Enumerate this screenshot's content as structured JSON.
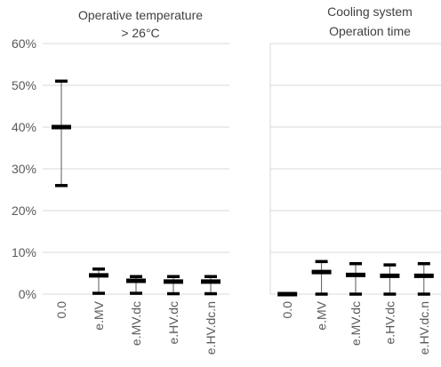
{
  "chart_data": [
    {
      "type": "errorbar",
      "title": [
        "Operative temperature",
        "> 26°C"
      ],
      "ylim": [
        0,
        60
      ],
      "ytick_format": "percent",
      "yticks": [
        0,
        10,
        20,
        30,
        40,
        50,
        60
      ],
      "grid": true,
      "categories": [
        "0.0",
        "e.MV",
        "e.MV.dc",
        "e.HV.dc",
        "e.HV.dc.n"
      ],
      "mid": [
        40,
        4.5,
        3.2,
        3.0,
        3.0
      ],
      "high": [
        51,
        6,
        4.2,
        4.2,
        4.2
      ],
      "low": [
        26,
        0.2,
        0.2,
        0.1,
        0.1
      ]
    },
    {
      "type": "errorbar",
      "title": [
        "Cooling system",
        "Operation time"
      ],
      "ylim": [
        0,
        60
      ],
      "grid": true,
      "categories": [
        "0.0",
        "e.MV",
        "e.MV.dc",
        "e.HV.dc",
        "e.HV.dc.n"
      ],
      "mid": [
        0,
        5.3,
        4.6,
        4.4,
        4.4
      ],
      "high": [
        0.1,
        7.8,
        7.3,
        7.0,
        7.3
      ],
      "low": [
        0,
        0,
        0,
        0,
        0
      ]
    }
  ]
}
